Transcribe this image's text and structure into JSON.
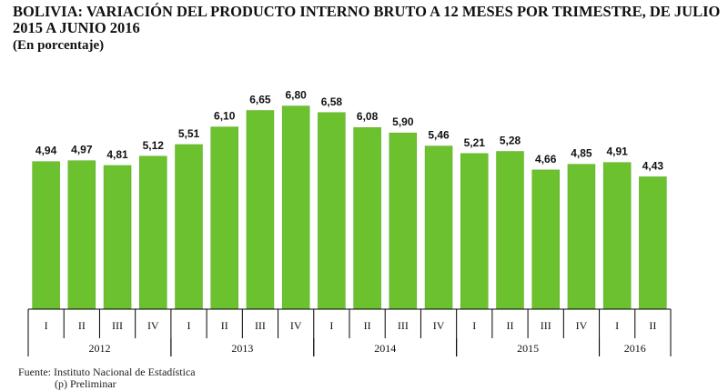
{
  "title": "BOLIVIA: VARIACIÓN DEL PRODUCTO INTERNO BRUTO A 12 MESES POR TRIMESTRE, DE JULIO 2015 A JUNIO 2016",
  "subtitle": "(En porcentaje)",
  "footnotes": {
    "source": "Fuente: Instituto Nacional de Estadística",
    "preliminary": "(p) Preliminar"
  },
  "colors": {
    "bar": "#6cc12f",
    "bar_stroke": "#5aa826",
    "axis": "#000000"
  },
  "chart_data": {
    "type": "bar",
    "title": "BOLIVIA: VARIACIÓN DEL PRODUCTO INTERNO BRUTO A 12 MESES POR TRIMESTRE, DE JULIO 2015 A JUNIO 2016",
    "subtitle": "(En porcentaje)",
    "categories": [
      "I",
      "II",
      "III",
      "IV",
      "I",
      "II",
      "III",
      "IV",
      "I",
      "II",
      "III",
      "IV",
      "I",
      "II",
      "III",
      "IV",
      "I",
      "II"
    ],
    "value_labels": [
      "4,94",
      "4,97",
      "4,81",
      "5,12",
      "5,51",
      "6,10",
      "6,65",
      "6,80",
      "6,58",
      "6,08",
      "5,90",
      "5,46",
      "5,21",
      "5,28",
      "4,66",
      "4,85",
      "4,91",
      "4,43"
    ],
    "values": [
      4.94,
      4.97,
      4.81,
      5.12,
      5.51,
      6.1,
      6.65,
      6.8,
      6.58,
      6.08,
      5.9,
      5.46,
      5.21,
      5.28,
      4.66,
      4.85,
      4.91,
      4.43
    ],
    "groups": [
      {
        "label": "2012",
        "count": 4
      },
      {
        "label": "2013",
        "count": 4
      },
      {
        "label": "2014",
        "count": 4
      },
      {
        "label": "2015",
        "count": 4
      },
      {
        "label": "2016",
        "count": 2
      }
    ],
    "ylim": [
      0,
      7
    ],
    "grid": false,
    "legend": "none"
  }
}
